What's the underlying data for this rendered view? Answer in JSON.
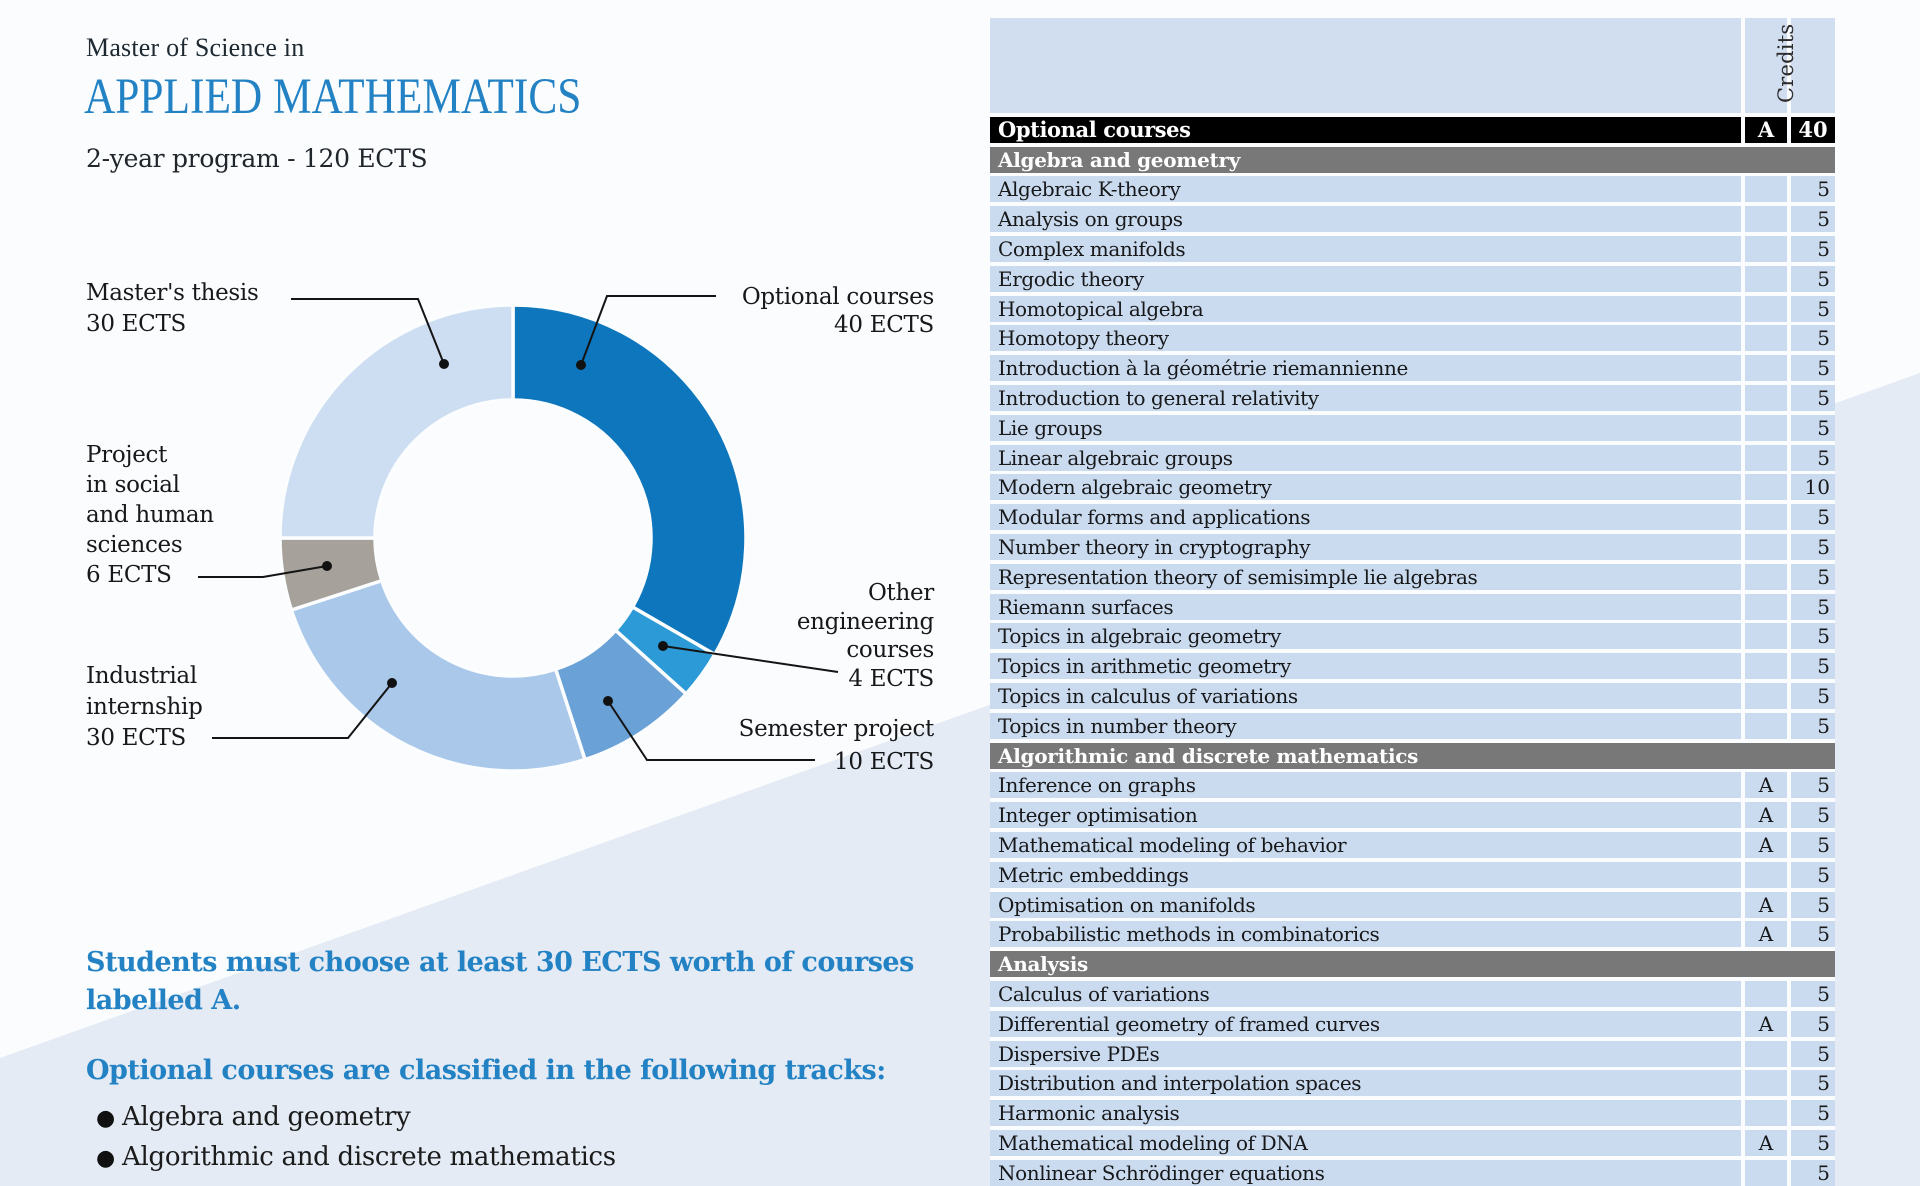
{
  "page": {
    "title_prefix": "Master of Science in",
    "title": "APPLIED MATHEMATICS",
    "subtitle": "2-year program - 120 ECTS"
  },
  "colors": {
    "accent_blue": "#2382c4",
    "table_row_blue": "#cbdbef",
    "section_gray": "#787878",
    "total_black": "#000000"
  },
  "chart_data": {
    "type": "pie",
    "subtype": "donut",
    "title": "Program structure (120 ECTS)",
    "unit": "ECTS",
    "total": 120,
    "order": "clockwise-from-top",
    "legend_position": "callouts",
    "segments": [
      {
        "label": "Optional courses",
        "value": 40,
        "color": "#0d76bc",
        "callout": "Optional courses\n40 ECTS"
      },
      {
        "label": "Other engineering courses",
        "value": 4,
        "color": "#2c9ad7",
        "callout": "Other\nengineering\ncourses\n4 ECTS"
      },
      {
        "label": "Semester project",
        "value": 10,
        "color": "#6aa1d6",
        "callout": "Semester project\n10 ECTS"
      },
      {
        "label": "Industrial internship",
        "value": 30,
        "color": "#a9c8ea",
        "callout": "Industrial\ninternship\n30 ECTS"
      },
      {
        "label": "Project in social and human sciences",
        "value": 6,
        "color": "#a6a29b",
        "callout": "Project\nin social\nand human\nsciences\n6 ECTS"
      },
      {
        "label": "Master's thesis",
        "value": 30,
        "color": "#cdddf2",
        "callout": "Master's thesis\n30 ECTS"
      }
    ]
  },
  "notes": {
    "note1_lines": [
      "Students must choose at least 30 ECTS worth of courses",
      "labelled A."
    ],
    "note2": "Optional courses are classified in the following tracks:",
    "bullets": [
      "Algebra and geometry",
      "Algorithmic and discrete mathematics"
    ]
  },
  "table": {
    "credits_header": "Credits",
    "total_row": {
      "label": "Optional courses",
      "a_mark": "A",
      "credits": "40"
    },
    "sections": [
      {
        "header": "Algebra and geometry",
        "rows": [
          {
            "name": "Algebraic K-theory",
            "a_mark": "",
            "credits": "5"
          },
          {
            "name": "Analysis on groups",
            "a_mark": "",
            "credits": "5"
          },
          {
            "name": "Complex manifolds",
            "a_mark": "",
            "credits": "5"
          },
          {
            "name": "Ergodic theory",
            "a_mark": "",
            "credits": "5"
          },
          {
            "name": "Homotopical algebra",
            "a_mark": "",
            "credits": "5"
          },
          {
            "name": "Homotopy theory",
            "a_mark": "",
            "credits": "5"
          },
          {
            "name": "Introduction à la géométrie riemannienne",
            "a_mark": "",
            "credits": "5"
          },
          {
            "name": "Introduction to general relativity",
            "a_mark": "",
            "credits": "5"
          },
          {
            "name": "Lie groups",
            "a_mark": "",
            "credits": "5"
          },
          {
            "name": "Linear algebraic groups",
            "a_mark": "",
            "credits": "5"
          },
          {
            "name": "Modern algebraic geometry",
            "a_mark": "",
            "credits": "10"
          },
          {
            "name": "Modular forms and applications",
            "a_mark": "",
            "credits": "5"
          },
          {
            "name": "Number theory in cryptography",
            "a_mark": "",
            "credits": "5"
          },
          {
            "name": "Representation theory of semisimple lie algebras",
            "a_mark": "",
            "credits": "5"
          },
          {
            "name": "Riemann surfaces",
            "a_mark": "",
            "credits": "5"
          },
          {
            "name": "Topics in algebraic geometry",
            "a_mark": "",
            "credits": "5"
          },
          {
            "name": "Topics in arithmetic geometry",
            "a_mark": "",
            "credits": "5"
          },
          {
            "name": "Topics in calculus of variations",
            "a_mark": "",
            "credits": "5"
          },
          {
            "name": "Topics in number theory",
            "a_mark": "",
            "credits": "5"
          }
        ]
      },
      {
        "header": "Algorithmic and discrete mathematics",
        "rows": [
          {
            "name": "Inference on graphs",
            "a_mark": "A",
            "credits": "5"
          },
          {
            "name": "Integer optimisation",
            "a_mark": "A",
            "credits": "5"
          },
          {
            "name": "Mathematical modeling of behavior",
            "a_mark": "A",
            "credits": "5"
          },
          {
            "name": "Metric embeddings",
            "a_mark": "",
            "credits": "5"
          },
          {
            "name": "Optimisation on manifolds",
            "a_mark": "A",
            "credits": "5"
          },
          {
            "name": "Probabilistic methods in combinatorics",
            "a_mark": "A",
            "credits": "5"
          }
        ]
      },
      {
        "header": "Analysis",
        "rows": [
          {
            "name": "Calculus of variations",
            "a_mark": "",
            "credits": "5"
          },
          {
            "name": "Differential geometry of framed curves",
            "a_mark": "A",
            "credits": "5"
          },
          {
            "name": "Dispersive PDEs",
            "a_mark": "",
            "credits": "5"
          },
          {
            "name": "Distribution and interpolation spaces",
            "a_mark": "",
            "credits": "5"
          },
          {
            "name": "Harmonic analysis",
            "a_mark": "",
            "credits": "5"
          },
          {
            "name": "Mathematical modeling of DNA",
            "a_mark": "A",
            "credits": "5"
          },
          {
            "name": "Nonlinear Schrödinger equations",
            "a_mark": "",
            "credits": "5"
          }
        ]
      }
    ]
  }
}
